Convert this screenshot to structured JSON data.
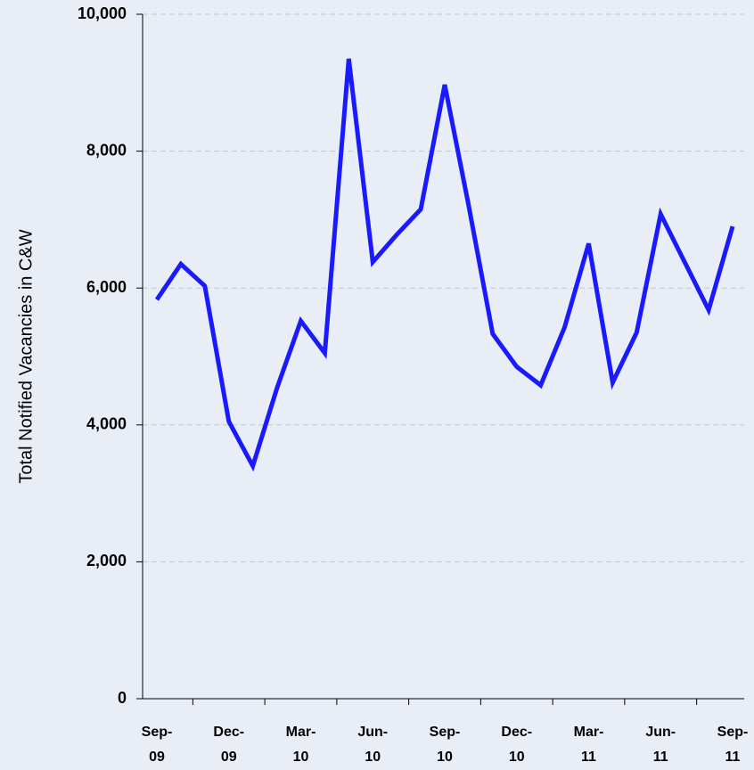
{
  "chart_data": {
    "type": "line",
    "y_label": "Total Notified Vacancies in C&W",
    "categories": [
      "Sep-09",
      null,
      null,
      "Dec-09",
      null,
      null,
      "Mar-10",
      null,
      null,
      "Jun-10",
      null,
      null,
      "Sep-10",
      null,
      null,
      "Dec-10",
      null,
      null,
      "Mar-11",
      null,
      null,
      "Jun-11",
      null,
      null,
      "Sep-11"
    ],
    "series": [
      {
        "name": "Total Notified Vacancies",
        "color": "#1a1aff",
        "values": [
          5830,
          6350,
          6030,
          4050,
          3400,
          4530,
          5520,
          5050,
          9350,
          6380,
          6780,
          7150,
          8970,
          7200,
          5330,
          4850,
          4580,
          5430,
          6650,
          4620,
          5350,
          7080,
          6380,
          5680,
          6900
        ]
      }
    ],
    "ylim": [
      0,
      10000
    ],
    "yticks": [
      0,
      {
        "value": 2000,
        "label": "2,000"
      },
      {
        "value": 4000,
        "label": "4,000"
      },
      {
        "value": 6000,
        "label": "6,000"
      },
      {
        "value": 8000,
        "label": "8,000"
      },
      {
        "value": 10000,
        "label": "10,000"
      }
    ],
    "grid": true
  }
}
